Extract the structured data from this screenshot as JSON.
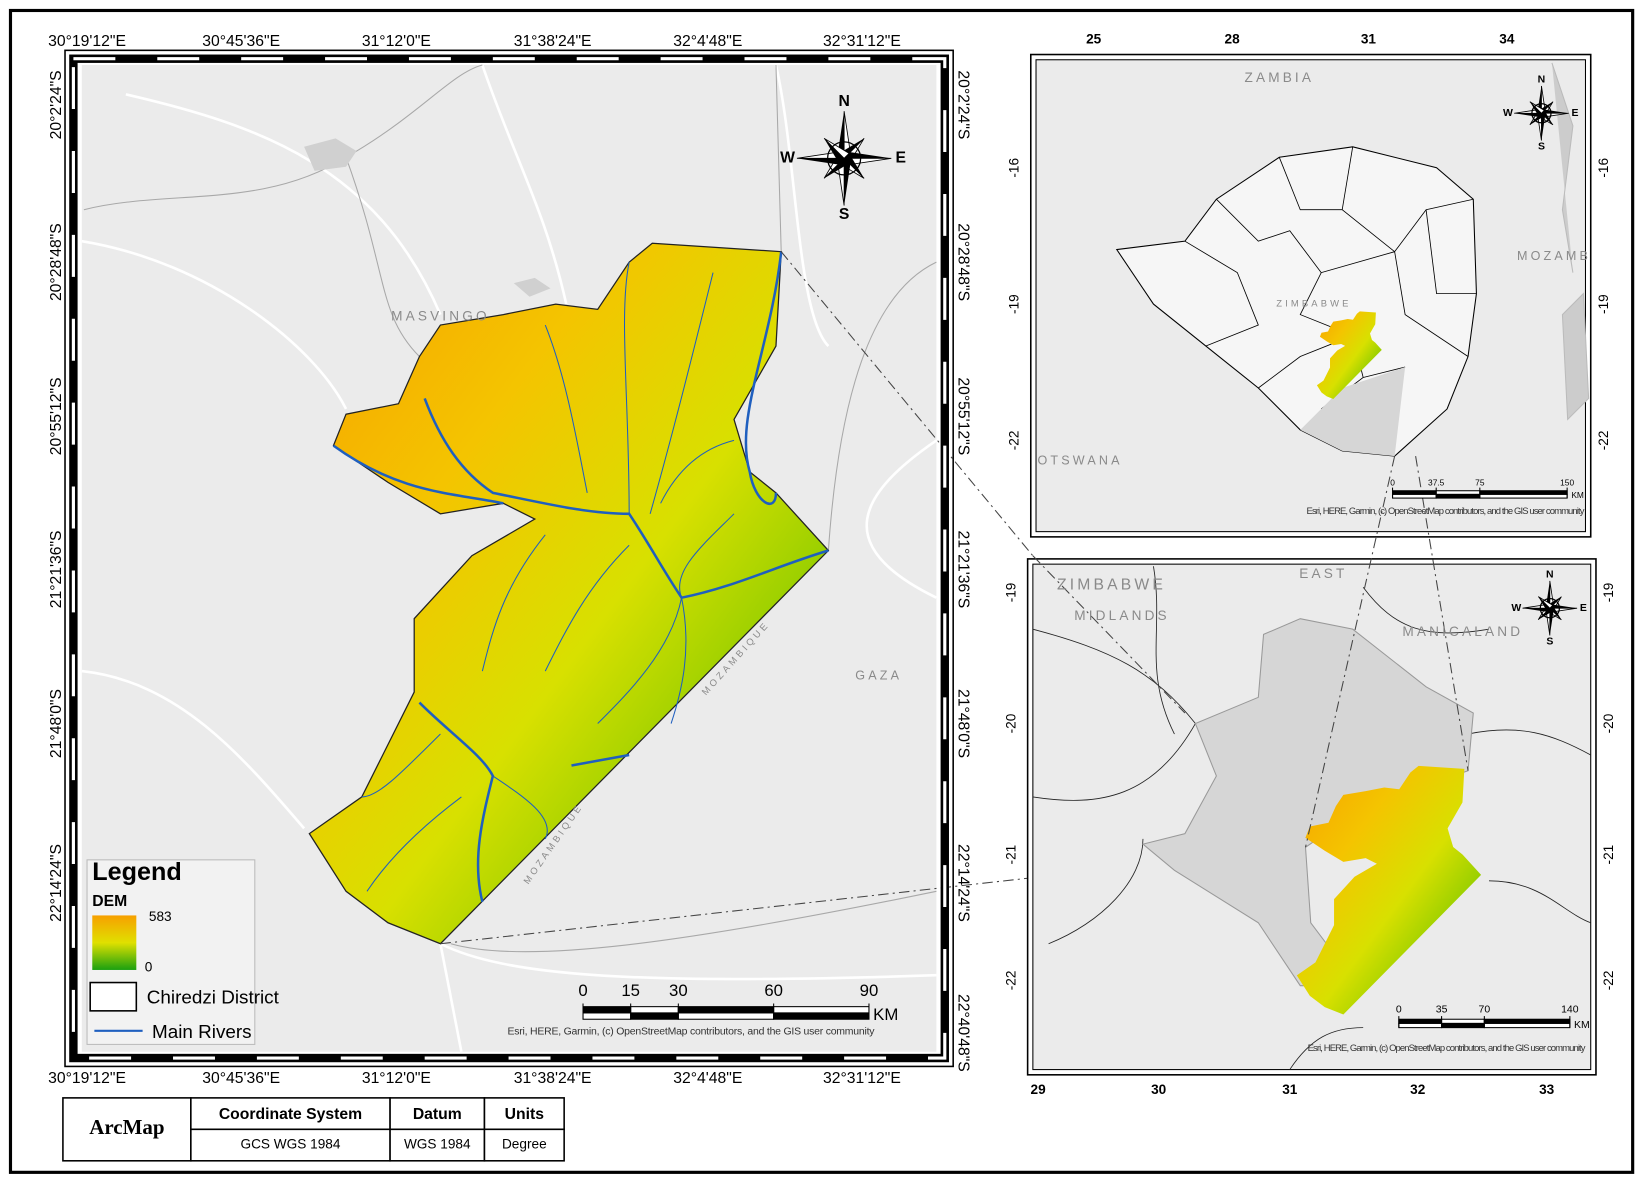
{
  "main_map": {
    "top_lon_labels": [
      "30°19'12\"E",
      "30°45'36\"E",
      "31°12'0\"E",
      "31°38'24\"E",
      "32°4'48\"E",
      "32°31'12\"E"
    ],
    "bottom_lon_labels": [
      "30°19'12\"E",
      "30°45'36\"E",
      "31°12'0\"E",
      "31°38'24\"E",
      "32°4'48\"E",
      "32°31'12\"E"
    ],
    "left_lat_labels": [
      "20°2'24\"S",
      "20°28'48\"S",
      "20°55'12\"S",
      "21°21'36\"S",
      "21°48'0\"S",
      "22°14'24\"S"
    ],
    "right_lat_labels": [
      "20°2'24\"S",
      "20°28'48\"S",
      "20°55'12\"S",
      "21°21'36\"S",
      "21°48'0\"S",
      "22°14'24\"S",
      "22°40'48\"S"
    ],
    "place_labels": [
      "MASVINGO",
      "GAZA",
      "MOZAMBIQUE",
      "MOZAMBIQUE"
    ],
    "legend": {
      "title": "Legend",
      "dem_label": "DEM",
      "dem_max": 583,
      "dem_min": 0,
      "district": "Chiredzi District",
      "rivers": "Main Rivers"
    },
    "scale_bar": {
      "ticks": [
        0,
        15,
        30,
        60,
        90
      ]
    }
  },
  "compass": {
    "n": "N",
    "s": "S",
    "e": "E",
    "w": "W"
  },
  "scale_unit": "KM",
  "attribution": "Esri, HERE, Garmin, (c) OpenStreetMap contributors, and the GIS user community",
  "inset_top": {
    "x_labels": [
      "25",
      "28",
      "31",
      "34"
    ],
    "y_labels": [
      "-16",
      "-19",
      "-22"
    ],
    "place_labels": [
      "ZAMBIA",
      "ZIMBABWE",
      "MOZAMB",
      "OTSWANA"
    ],
    "scale_bar": {
      "ticks": [
        0,
        37.5,
        75,
        150
      ]
    }
  },
  "inset_bottom": {
    "x_labels": [
      "29",
      "30",
      "31",
      "32",
      "33"
    ],
    "y_labels": [
      "-19",
      "-20",
      "-21",
      "-22"
    ],
    "place_labels": [
      "ZIMBABWE",
      "MIDLANDS",
      "EAST",
      "MANICALAND"
    ],
    "scale_bar": {
      "ticks": [
        0,
        35,
        70,
        140
      ]
    }
  },
  "table": {
    "software": "ArcMap",
    "headers": [
      "Coordinate System",
      "Datum",
      "Units"
    ],
    "row": [
      "GCS WGS 1984",
      "WGS 1984",
      "Degree"
    ]
  }
}
